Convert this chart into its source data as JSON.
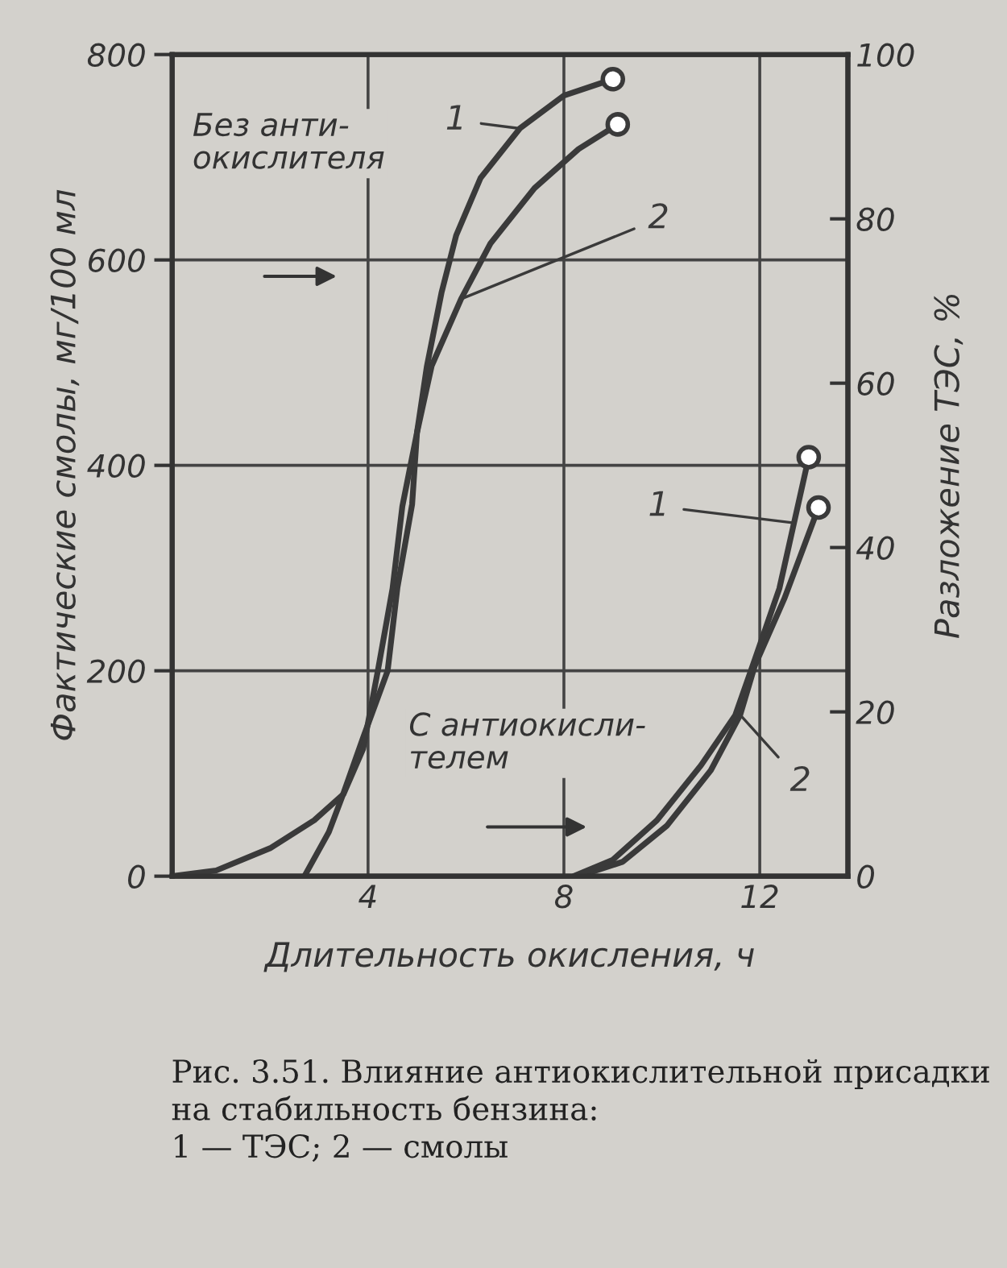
{
  "chart_data": {
    "type": "line",
    "xlabel": "Длительность окисления, ч",
    "ylabel": "Фактические смолы, мг/100 мл",
    "y2label": "Разложение ТЭС, %",
    "xlim": [
      0,
      13.8
    ],
    "xticks": [
      4,
      8,
      12
    ],
    "ylim": [
      0,
      800
    ],
    "yticks": [
      0,
      200,
      400,
      600,
      800
    ],
    "y2lim": [
      0,
      100
    ],
    "y2ticks": [
      0,
      20,
      40,
      60,
      80,
      100
    ],
    "grid": true,
    "line_style": "solid",
    "series": [
      {
        "name": "1",
        "color": "#3a3a3a",
        "axis": "y2",
        "x": [
          0,
          0.9,
          2.0,
          2.9,
          3.5,
          3.9,
          4.2,
          4.5,
          4.7,
          5.0,
          5.2,
          5.5,
          5.8,
          6.3,
          7.1,
          8.0,
          9.0
        ],
        "values": [
          0,
          0.7,
          3.4,
          6.8,
          10,
          15.5,
          25,
          35,
          45,
          54,
          62,
          71,
          78,
          85,
          91,
          95,
          97
        ]
      },
      {
        "name": "2",
        "color": "#3a3a3a",
        "x": [
          2.7,
          3.2,
          3.5,
          3.9,
          4.4,
          4.6,
          4.9,
          5.0,
          5.3,
          5.9,
          6.5,
          7.4,
          8.3,
          9.1
        ],
        "values": [
          0,
          43,
          81,
          135,
          200,
          281,
          362,
          432,
          497,
          562,
          616,
          670,
          708,
          732
        ]
      },
      {
        "name": "1",
        "color": "#3a3a3a",
        "axis": "y2",
        "x": [
          8.2,
          9.0,
          9.9,
          10.8,
          11.5,
          11.9,
          12.4,
          12.7,
          13.0
        ],
        "values": [
          0,
          2,
          6.8,
          13.5,
          19.6,
          26.4,
          35,
          43,
          51
        ]
      },
      {
        "name": "2",
        "color": "#3a3a3a",
        "x": [
          8.3,
          9.2,
          10.1,
          11.0,
          11.6,
          11.9,
          12.5,
          13.2
        ],
        "values": [
          0,
          14,
          49,
          103,
          157,
          205,
          270,
          359
        ]
      }
    ],
    "annotations": [
      "Без анти-\nокислителя",
      "С антиокисли-\nтелем",
      "Рис. 3.51. Влияние антиокислительной присадки на стабильность бензина:\n1 — ТЭС; 2 — смолы"
    ]
  }
}
